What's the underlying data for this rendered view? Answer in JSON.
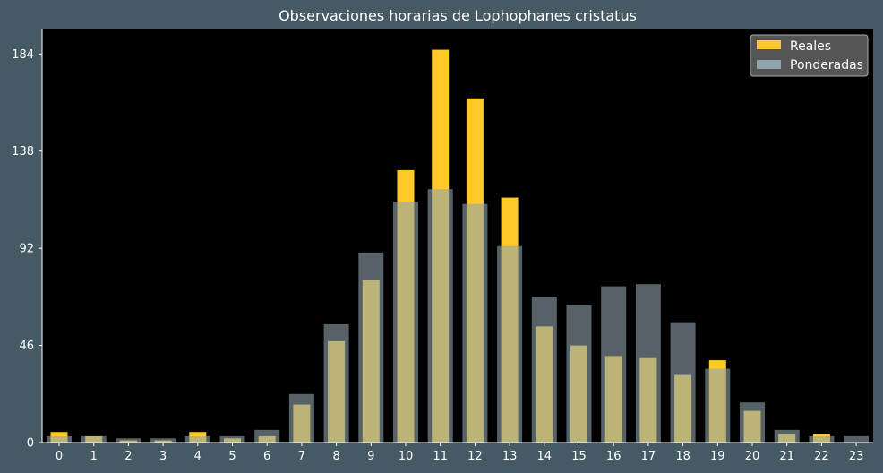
{
  "chart_data": {
    "type": "bar",
    "title": "Observaciones horarias de Lophophanes cristatus",
    "xlabel": "",
    "ylabel": "",
    "categories": [
      "0",
      "1",
      "2",
      "3",
      "4",
      "5",
      "6",
      "7",
      "8",
      "9",
      "10",
      "11",
      "12",
      "13",
      "14",
      "15",
      "16",
      "17",
      "18",
      "19",
      "20",
      "21",
      "22",
      "23"
    ],
    "yticks": [
      0,
      46,
      92,
      138,
      184
    ],
    "ylim": [
      0,
      196
    ],
    "grid": false,
    "legend_position": "top-right",
    "series": [
      {
        "name": "Ponderadas",
        "color": "#90a4ae",
        "opacity": 0.6,
        "values": [
          3,
          3,
          2,
          2,
          3,
          3,
          6,
          23,
          56,
          90,
          114,
          120,
          113,
          93,
          69,
          65,
          74,
          75,
          57,
          35,
          19,
          6,
          3,
          3
        ]
      },
      {
        "name": "Reales",
        "color": "#ffca28",
        "values": [
          5,
          3,
          1,
          1,
          5,
          2,
          3,
          18,
          48,
          77,
          129,
          186,
          163,
          116,
          55,
          46,
          41,
          40,
          32,
          39,
          15,
          4,
          4,
          0
        ]
      }
    ]
  }
}
